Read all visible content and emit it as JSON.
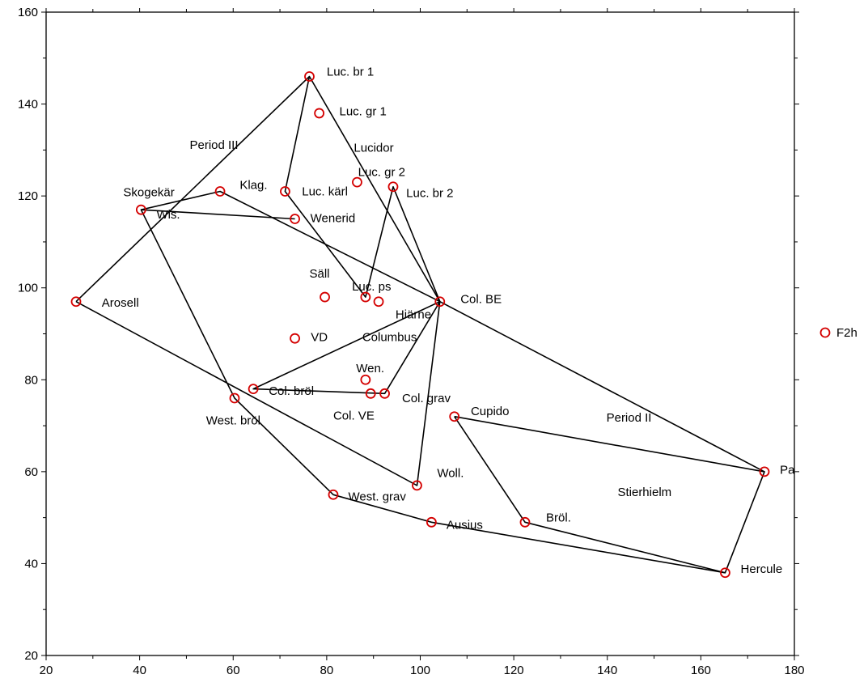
{
  "chart_data": {
    "type": "scatter",
    "xlim": [
      20,
      180
    ],
    "ylim": [
      20,
      160
    ],
    "x_ticks": [
      20,
      40,
      60,
      80,
      100,
      120,
      140,
      160,
      180
    ],
    "y_ticks": [
      20,
      40,
      60,
      80,
      100,
      120,
      140,
      160
    ],
    "grid": false,
    "marker_color": "#d40000",
    "line_color": "#000000",
    "legend": {
      "label": "F2h",
      "position": "right"
    },
    "points": [
      {
        "label": "Luc. br 1",
        "x": 76.3,
        "y": 146
      },
      {
        "label": "Luc. gr 1",
        "x": 78.4,
        "y": 138
      },
      {
        "label": "Luc. gr 2",
        "x": 94.2,
        "y": 122
      },
      {
        "label": "Luc. kärl",
        "x": 71.1,
        "y": 121
      },
      {
        "label": "Luc. br 2",
        "x": 86.5,
        "y": 123
      },
      {
        "label": "Klag.",
        "x": 57.2,
        "y": 121
      },
      {
        "label": "Wis.",
        "x": 40.3,
        "y": 117
      },
      {
        "label": "Wenerid",
        "x": 73.2,
        "y": 115
      },
      {
        "label": "Arosell",
        "x": 26.4,
        "y": 97
      },
      {
        "label": "Säll",
        "x": 79.6,
        "y": 98
      },
      {
        "label": "Luc. ps",
        "x": 88.3,
        "y": 98
      },
      {
        "label": "Hiärne",
        "x": 91.1,
        "y": 97
      },
      {
        "label": "Col. BE",
        "x": 104.2,
        "y": 97
      },
      {
        "label": "VD",
        "x": 73.2,
        "y": 89
      },
      {
        "label": "Wen.",
        "x": 88.3,
        "y": 80
      },
      {
        "label": "Col. bröl",
        "x": 64.3,
        "y": 78
      },
      {
        "label": "Col. VE",
        "x": 89.4,
        "y": 77
      },
      {
        "label": "Col. grav",
        "x": 92.4,
        "y": 77
      },
      {
        "label": "West. bröl",
        "x": 60.3,
        "y": 76
      },
      {
        "label": "Cupido",
        "x": 107.3,
        "y": 72
      },
      {
        "label": "Woll.",
        "x": 99.3,
        "y": 57
      },
      {
        "label": "West. grav",
        "x": 81.4,
        "y": 55
      },
      {
        "label": "Ausius",
        "x": 102.4,
        "y": 49
      },
      {
        "label": "Bröl.",
        "x": 122.4,
        "y": 49
      },
      {
        "label": "Pa",
        "x": 173.6,
        "y": 60
      },
      {
        "label": "Hercule",
        "x": 165.2,
        "y": 38
      }
    ],
    "labels_text": [
      {
        "text": "Luc. br 1",
        "x": 80.0,
        "y": 147.1
      },
      {
        "text": "Luc. gr 1",
        "x": 82.7,
        "y": 138.4
      },
      {
        "text": "Period III",
        "x": 50.7,
        "y": 131.1
      },
      {
        "text": "Lucidor",
        "x": 85.8,
        "y": 130.5
      },
      {
        "text": "Luc. gr 2",
        "x": 86.7,
        "y": 125.2
      },
      {
        "text": "Skogekär",
        "x": 36.5,
        "y": 120.8
      },
      {
        "text": "Klag.",
        "x": 61.4,
        "y": 122.4
      },
      {
        "text": "Luc. kärl",
        "x": 74.7,
        "y": 121.0
      },
      {
        "text": "Luc. br 2",
        "x": 97.0,
        "y": 120.6
      },
      {
        "text": "Wis.",
        "x": 43.6,
        "y": 116.0
      },
      {
        "text": "Wenerid",
        "x": 76.5,
        "y": 115.2
      },
      {
        "text": "Säll",
        "x": 76.3,
        "y": 103.1
      },
      {
        "text": "Luc. ps",
        "x": 85.4,
        "y": 100.3
      },
      {
        "text": "Col. BE",
        "x": 108.6,
        "y": 97.6
      },
      {
        "text": "Arosell",
        "x": 31.9,
        "y": 96.8
      },
      {
        "text": "Hiärne",
        "x": 94.7,
        "y": 94.2
      },
      {
        "text": "VD",
        "x": 76.6,
        "y": 89.3
      },
      {
        "text": "Columbus",
        "x": 87.6,
        "y": 89.3
      },
      {
        "text": "Wen.",
        "x": 86.3,
        "y": 82.5
      },
      {
        "text": "Col. bröl",
        "x": 67.6,
        "y": 77.6
      },
      {
        "text": "Col. grav",
        "x": 96.1,
        "y": 76.0
      },
      {
        "text": "Cupido",
        "x": 110.8,
        "y": 73.2
      },
      {
        "text": "Period II",
        "x": 139.8,
        "y": 71.8
      },
      {
        "text": "West. bröl",
        "x": 54.2,
        "y": 71.2
      },
      {
        "text": "Col. VE",
        "x": 81.4,
        "y": 72.2
      },
      {
        "text": "Pa",
        "x": 176.9,
        "y": 60.4
      },
      {
        "text": "Woll.",
        "x": 103.6,
        "y": 59.7
      },
      {
        "text": "Stierhielm",
        "x": 142.2,
        "y": 55.6
      },
      {
        "text": "West. grav",
        "x": 84.6,
        "y": 54.6
      },
      {
        "text": "Ausius",
        "x": 105.6,
        "y": 48.4
      },
      {
        "text": "Bröl.",
        "x": 126.9,
        "y": 50.0
      },
      {
        "text": "Hercule",
        "x": 168.5,
        "y": 38.8
      }
    ],
    "lines": [
      [
        [
          26.4,
          97
        ],
        [
          76.3,
          146
        ],
        [
          104.2,
          97
        ],
        [
          173.6,
          60
        ],
        [
          165.2,
          38
        ],
        [
          102.4,
          49
        ],
        [
          81.4,
          55
        ],
        [
          60.3,
          76
        ],
        [
          40.3,
          117
        ],
        [
          57.2,
          121
        ],
        [
          104.2,
          97
        ],
        [
          99.3,
          57
        ],
        [
          26.4,
          97
        ]
      ],
      [
        [
          76.3,
          146
        ],
        [
          71.1,
          121
        ],
        [
          88.3,
          98
        ],
        [
          94.2,
          122
        ],
        [
          104.2,
          97
        ],
        [
          92.4,
          77
        ],
        [
          64.3,
          78
        ],
        [
          104.2,
          97
        ]
      ],
      [
        [
          40.3,
          117
        ],
        [
          73.2,
          115
        ]
      ],
      [
        [
          107.3,
          72
        ],
        [
          173.6,
          60
        ]
      ],
      [
        [
          107.3,
          72
        ],
        [
          122.4,
          49
        ],
        [
          165.2,
          38
        ]
      ]
    ]
  }
}
